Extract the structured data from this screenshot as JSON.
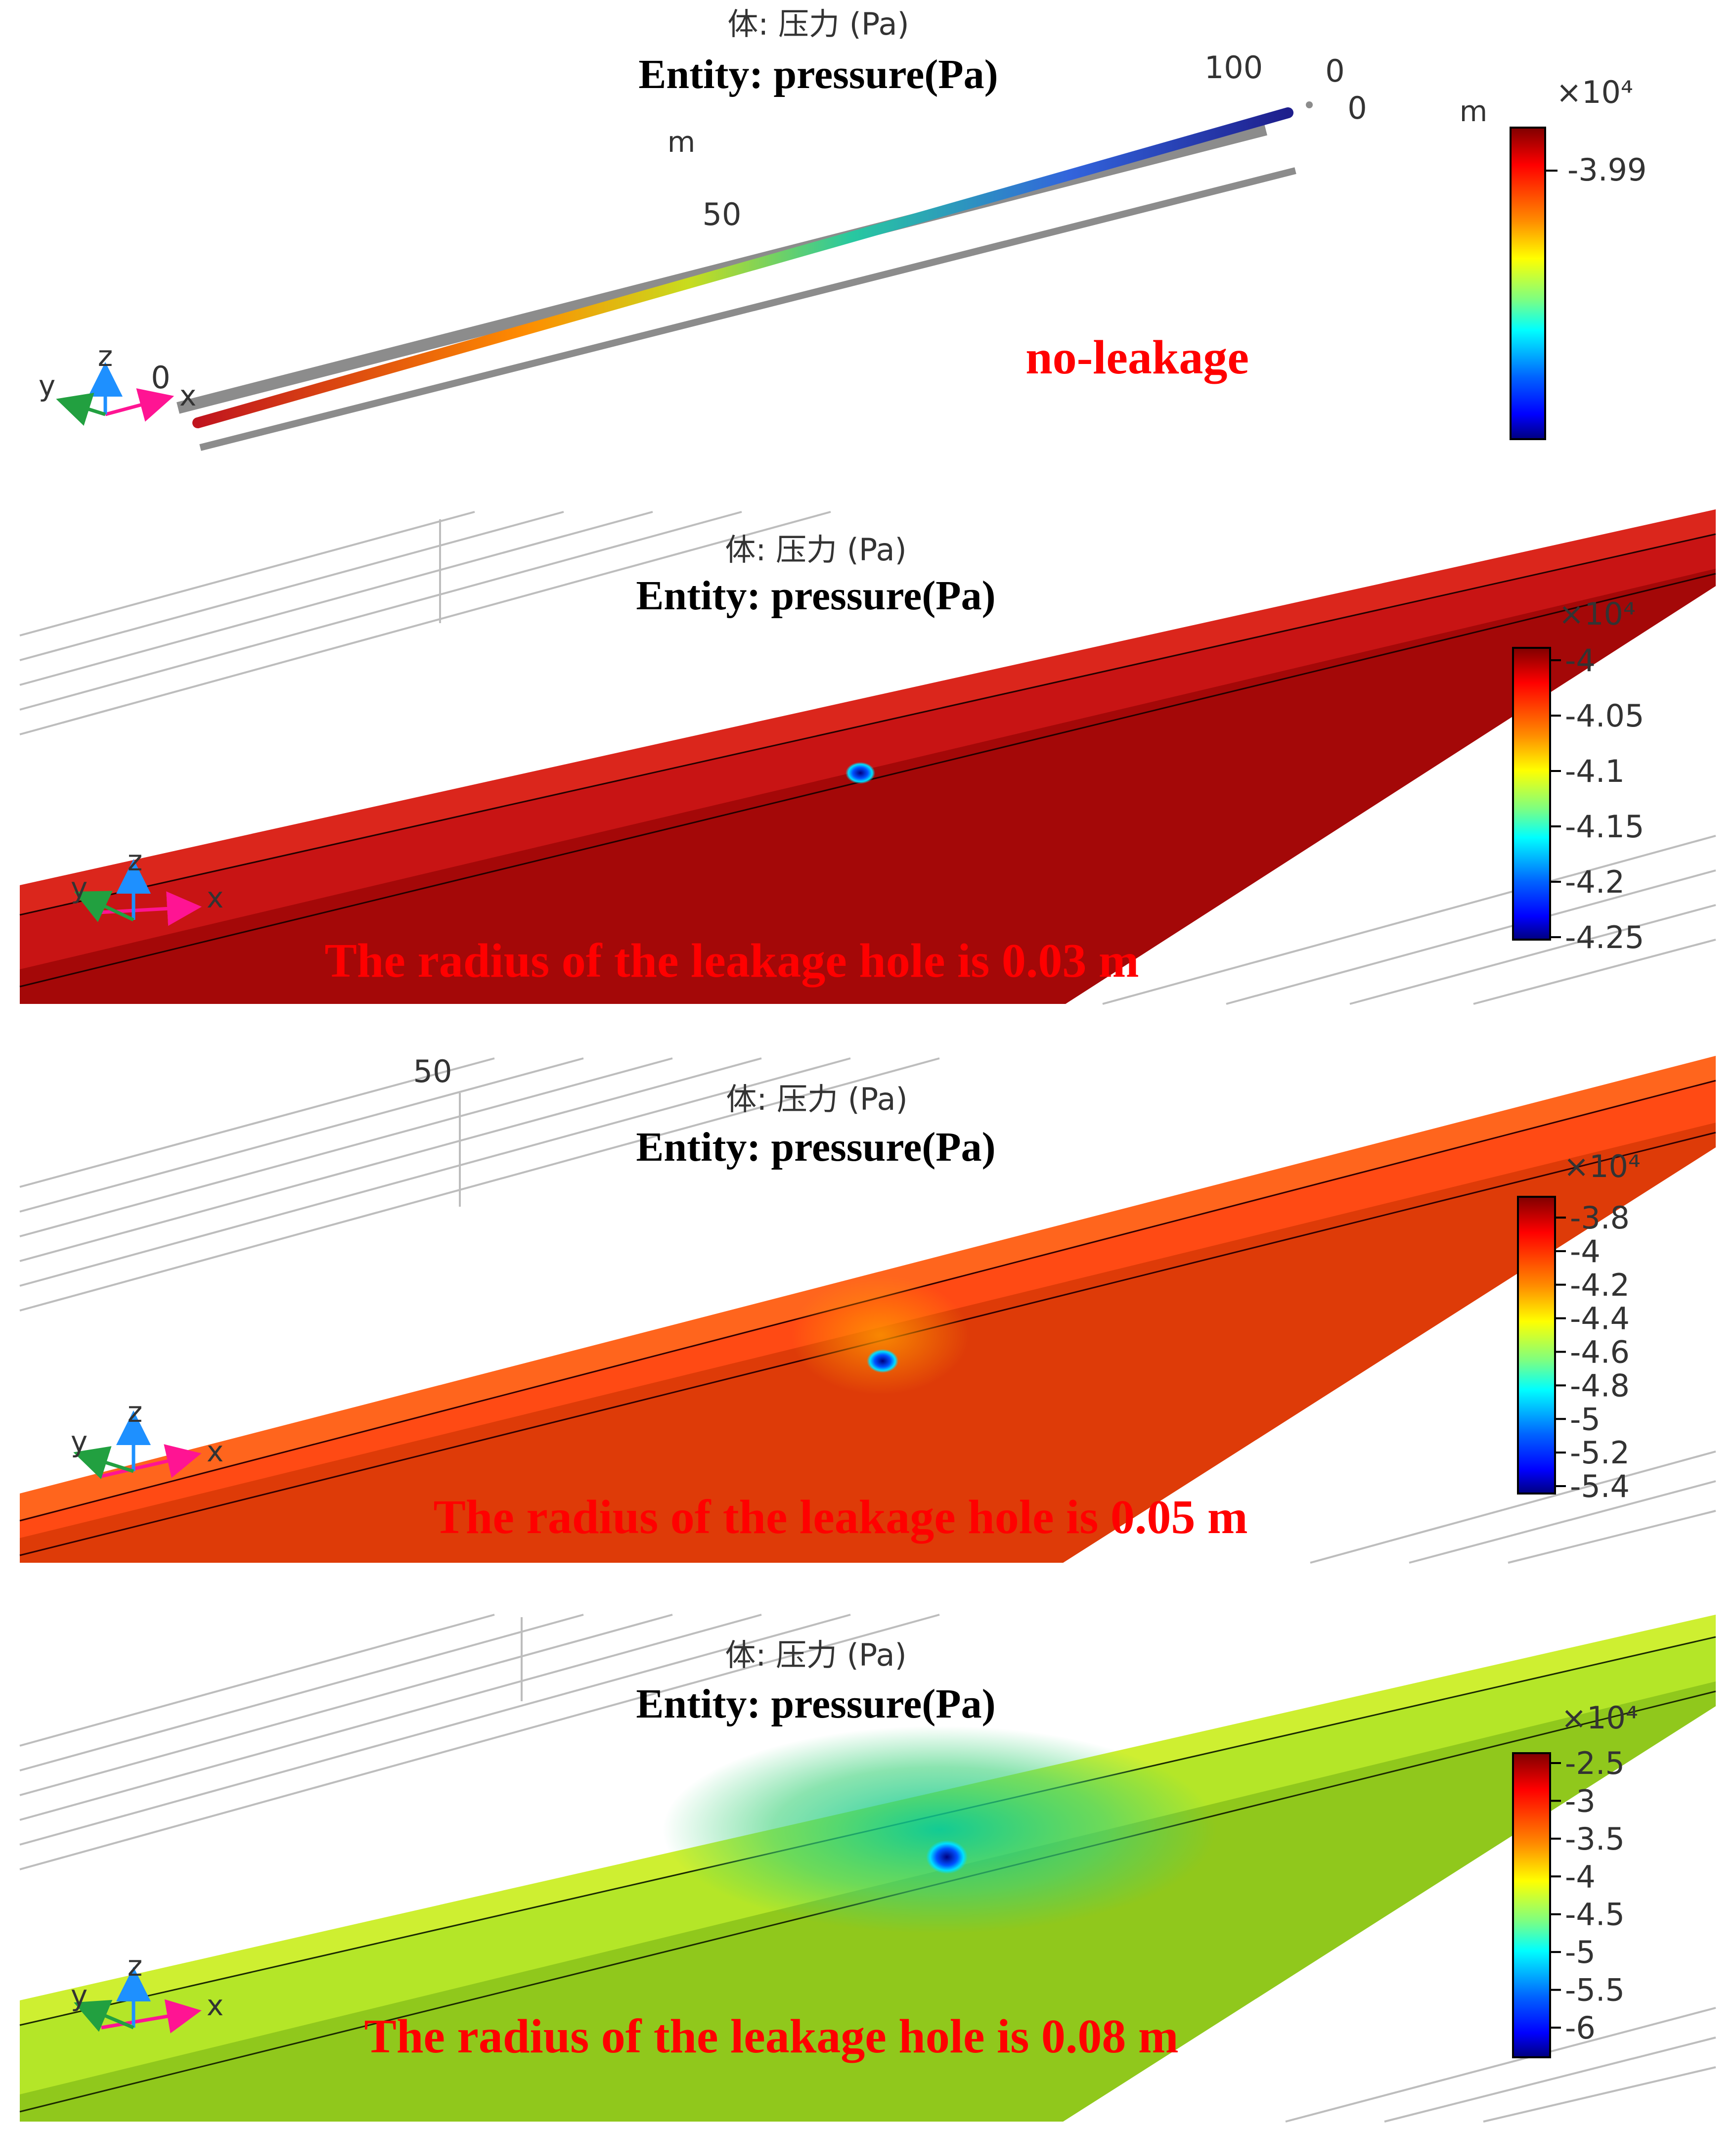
{
  "colormap": [
    "#7f0000",
    "#ff0000",
    "#ff7f00",
    "#ffff00",
    "#7fff7f",
    "#00ffff",
    "#007fff",
    "#0000ff",
    "#00007f"
  ],
  "panels": [
    {
      "id": "no-leakage",
      "title_cn": "体: 压力 (Pa)",
      "title_en": "Entity: pressure(Pa)",
      "caption": "no-leakage",
      "axis_labels": {
        "x": "x",
        "y": "y",
        "z": "z"
      },
      "colorbar": {
        "exponent": "×10⁴",
        "unit": "m",
        "ticks": [
          "-3.99"
        ]
      },
      "scale_labels": {
        "far_top": "100",
        "mid": "50",
        "unit": "m",
        "near": "0",
        "end_a": "0",
        "end_b": "0"
      }
    },
    {
      "id": "hole-0.03",
      "title_cn": "体: 压力 (Pa)",
      "title_en": "Entity: pressure(Pa)",
      "caption": "The radius of the leakage hole is 0.03 m",
      "axis_labels": {
        "x": "x",
        "y": "y",
        "z": "z"
      },
      "pipe_color": "#c81414",
      "colorbar": {
        "exponent": "×10⁴",
        "ticks": [
          "-4",
          "-4.05",
          "-4.1",
          "-4.15",
          "-4.2",
          "-4.25"
        ]
      }
    },
    {
      "id": "hole-0.05",
      "title_cn": "体: 压力 (Pa)",
      "title_en": "Entity: pressure(Pa)",
      "caption": "The radius of the leakage hole is 0.05 m",
      "axis_labels": {
        "x": "x",
        "y": "y",
        "z": "z"
      },
      "grid_label": "50",
      "pipe_color": "#ff4a14",
      "colorbar": {
        "exponent": "×10⁴",
        "ticks": [
          "-3.8",
          "-4",
          "-4.2",
          "-4.4",
          "-4.6",
          "-4.8",
          "-5",
          "-5.2",
          "-5.4"
        ]
      }
    },
    {
      "id": "hole-0.08",
      "title_cn": "体: 压力 (Pa)",
      "title_en": "Entity: pressure(Pa)",
      "caption": "The radius of the leakage hole is 0.08 m",
      "axis_labels": {
        "x": "x",
        "y": "y",
        "z": "z"
      },
      "pipe_color": "#b4e628",
      "colorbar": {
        "exponent": "×10⁴",
        "ticks": [
          "-2.5",
          "-3",
          "-3.5",
          "-4",
          "-4.5",
          "-5",
          "-5.5",
          "-6"
        ]
      }
    }
  ]
}
